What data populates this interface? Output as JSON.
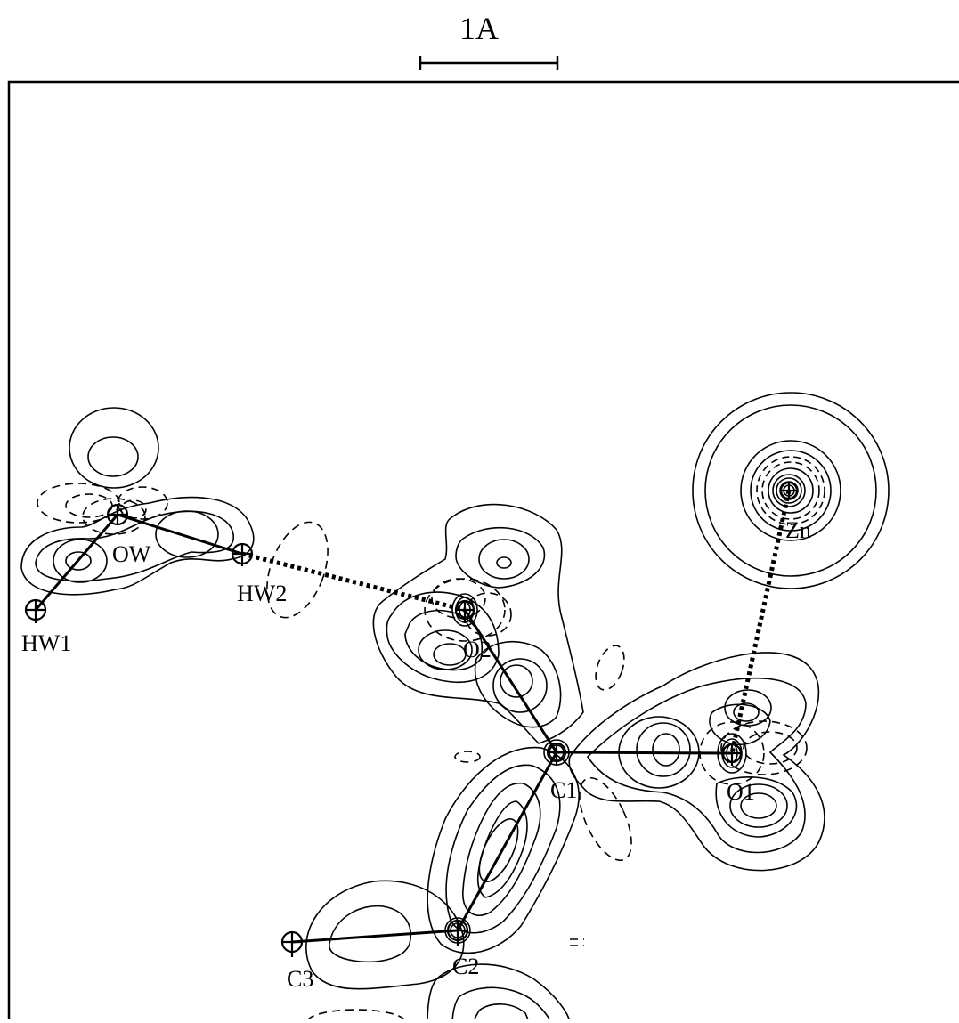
{
  "scale_bar": {
    "label": "1A"
  },
  "atoms": [
    {
      "id": "OW",
      "label": "OW"
    },
    {
      "id": "HW1",
      "label": "HW1"
    },
    {
      "id": "HW2",
      "label": "HW2"
    },
    {
      "id": "O2",
      "label": "O2"
    },
    {
      "id": "Zn",
      "label": "Zn"
    },
    {
      "id": "C1",
      "label": "C1"
    },
    {
      "id": "O1",
      "label": "O1"
    },
    {
      "id": "C2",
      "label": "C2"
    },
    {
      "id": "C3",
      "label": "C3"
    }
  ],
  "bonds": [
    {
      "from": "HW1",
      "to": "OW",
      "style": "solid"
    },
    {
      "from": "OW",
      "to": "HW2",
      "style": "solid"
    },
    {
      "from": "HW2",
      "to": "O2",
      "style": "dotted"
    },
    {
      "from": "O2",
      "to": "C1",
      "style": "solid"
    },
    {
      "from": "C1",
      "to": "O1",
      "style": "solid"
    },
    {
      "from": "Zn",
      "to": "O1",
      "style": "dotted"
    },
    {
      "from": "C1",
      "to": "C2",
      "style": "solid"
    },
    {
      "from": "C2",
      "to": "C3",
      "style": "solid"
    }
  ],
  "colors": {
    "ink": "#000000",
    "background": "#ffffff"
  }
}
